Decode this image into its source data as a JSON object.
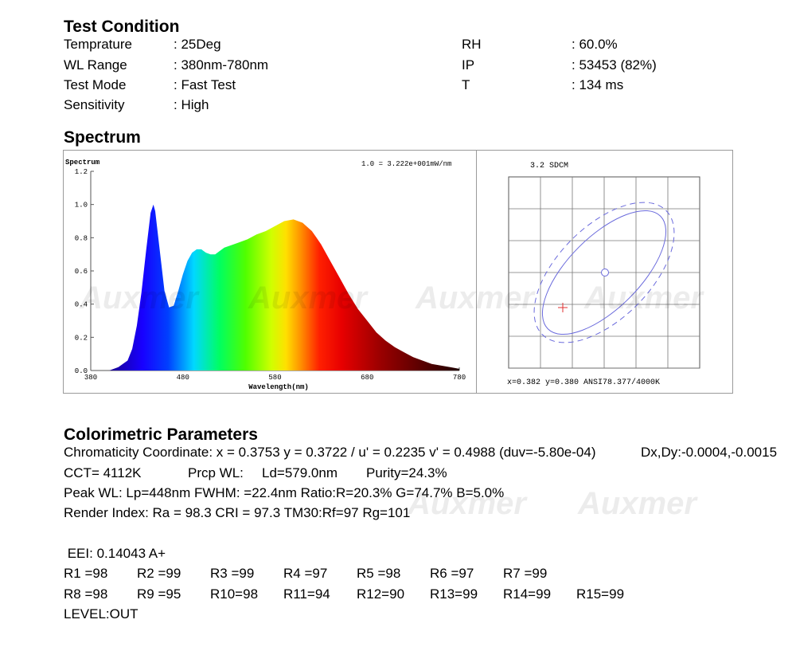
{
  "test_condition": {
    "title": "Test Condition",
    "left": [
      {
        "label": "Temprature",
        "value": ": 25Deg"
      },
      {
        "label": "WL Range",
        "value": ": 380nm-780nm"
      },
      {
        "label": "Test Mode",
        "value": ": Fast Test"
      },
      {
        "label": "Sensitivity",
        "value": ": High"
      }
    ],
    "right": [
      {
        "label": "RH",
        "value": ": 60.0%"
      },
      {
        "label": "IP",
        "value": ": 53453 (82%)"
      },
      {
        "label": "T",
        "value": ": 134 ms"
      }
    ]
  },
  "spectrum_title": "Spectrum",
  "watermark": "Auxmer",
  "chart_data": [
    {
      "type": "area",
      "title": "Spectrum",
      "scale_note": "1.0 = 3.222e+001mW/nm",
      "xlabel": "Wavelength(nm)",
      "ylabel": "",
      "xlim": [
        380,
        780
      ],
      "ylim": [
        0,
        1.2
      ],
      "x_ticks": [
        "380",
        "480",
        "580",
        "680",
        "780"
      ],
      "y_ticks": [
        "0.0",
        "0.2",
        "0.4",
        "0.6",
        "0.8",
        "1.0",
        "1.2"
      ],
      "series": [
        {
          "x": [
            380,
            400,
            410,
            420,
            425,
            430,
            435,
            440,
            445,
            448,
            450,
            455,
            460,
            465,
            470,
            475,
            480,
            485,
            490,
            495,
            500,
            505,
            510,
            515,
            520,
            525,
            530,
            540,
            550,
            560,
            570,
            580,
            590,
            600,
            610,
            620,
            625,
            630,
            640,
            650,
            660,
            670,
            680,
            690,
            700,
            710,
            720,
            730,
            740,
            750,
            760,
            770,
            780
          ],
          "y": [
            0.0,
            0.0,
            0.02,
            0.06,
            0.13,
            0.27,
            0.47,
            0.72,
            0.95,
            1.0,
            0.96,
            0.72,
            0.48,
            0.38,
            0.39,
            0.48,
            0.58,
            0.66,
            0.71,
            0.73,
            0.73,
            0.71,
            0.7,
            0.7,
            0.72,
            0.74,
            0.75,
            0.77,
            0.79,
            0.82,
            0.84,
            0.87,
            0.9,
            0.91,
            0.89,
            0.84,
            0.8,
            0.76,
            0.66,
            0.56,
            0.46,
            0.37,
            0.3,
            0.23,
            0.18,
            0.14,
            0.11,
            0.08,
            0.06,
            0.04,
            0.03,
            0.02,
            0.01
          ]
        }
      ]
    },
    {
      "type": "scatter",
      "title": "3.2 SDCM",
      "readout": "x=0.382 y=0.380 ANSI78.377/4000K",
      "series": [
        {
          "name": "",
          "x": [
            0.382
          ],
          "y": [
            0.38
          ]
        }
      ]
    }
  ],
  "colorimetric": {
    "title": "Colorimetric Parameters",
    "chromaticity": "Chromaticity Coordinate: x = 0.3753 y = 0.3722 / u' = 0.2235 v' = 0.4988 (duv=-5.80e-04)",
    "dxdy": "Dx,Dy:-0.0004,-0.0015",
    "cct": "CCT=  4112K",
    "prcp_wl": "Prcp WL:",
    "ld": "Ld=579.0nm",
    "purity": "Purity=24.3%",
    "peak": "Peak WL:  Lp=448nm  FWHM:   =22.4nm  Ratio:R=20.3% G=74.7% B=5.0%",
    "render": "Render Index: Ra = 98.3 CRI = 97.3 TM30:Rf=97 Rg=101",
    "eei": " EEI: 0.14043 A+",
    "r_row1": [
      "R1 =98",
      "R2 =99",
      "R3 =99",
      "R4 =97",
      "R5 =98",
      "R6 =97",
      "R7 =99"
    ],
    "r_row2": [
      "R8 =98",
      "R9 =95",
      "R10=98",
      "R11=94",
      "R12=90",
      "R13=99",
      "R14=99",
      "R15=99"
    ],
    "level": "LEVEL:OUT"
  }
}
